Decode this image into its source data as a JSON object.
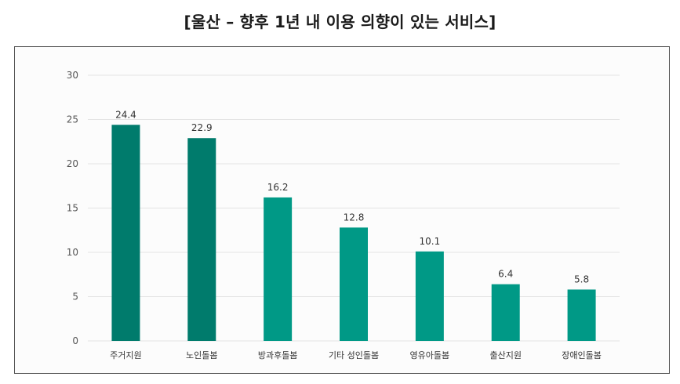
{
  "title": "[울산 – 향후 1년 내 이용 의향이 있는 서비스]",
  "colors": {
    "dark": "#007b6c",
    "light": "#009986",
    "grid": "#e4e4e4"
  },
  "chart_data": {
    "type": "bar",
    "categories": [
      "주거지원",
      "노인돌봄",
      "방과후돌봄",
      "기타 성인돌봄",
      "영유아돌봄",
      "출산지원",
      "장애인돌봄"
    ],
    "values": [
      24.4,
      22.9,
      16.2,
      12.8,
      10.1,
      6.4,
      5.8
    ],
    "ylim": [
      0,
      30
    ],
    "yticks": [
      0,
      5,
      10,
      15,
      20,
      25,
      30
    ],
    "title": "",
    "xlabel": "",
    "ylabel": "",
    "grid": true
  }
}
